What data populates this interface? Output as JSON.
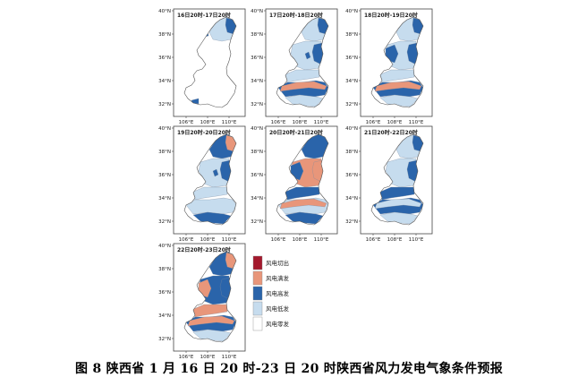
{
  "caption": "图 8  陕西省 1 月 16 日 20 时-23 日 20 时陕西省风力发电气象条件预报",
  "axis_labels": {
    "lat": [
      "40°N",
      "38°N",
      "36°N",
      "34°N",
      "32°N"
    ],
    "lon": [
      "106°E",
      "108°E",
      "110°E"
    ]
  },
  "panels": [
    {
      "title": "16日20时-17日20时",
      "pattern": "p1"
    },
    {
      "title": "17日20时-18日20时",
      "pattern": "p2"
    },
    {
      "title": "18日20时-19日20时",
      "pattern": "p3"
    },
    {
      "title": "19日20时-20日20时",
      "pattern": "p4"
    },
    {
      "title": "20日20时-21日20时",
      "pattern": "p5"
    },
    {
      "title": "21日20时-22日20时",
      "pattern": "p6"
    },
    {
      "title": "22日20时-23日20时",
      "pattern": "p7"
    }
  ],
  "legend": [
    {
      "label": "风电切出",
      "color": "#a4192d"
    },
    {
      "label": "风电满发",
      "color": "#e8967a"
    },
    {
      "label": "风电高发",
      "color": "#2a64aa"
    },
    {
      "label": "风电低发",
      "color": "#c6dcee"
    },
    {
      "label": "风电零发",
      "color": "#ffffff"
    }
  ]
}
